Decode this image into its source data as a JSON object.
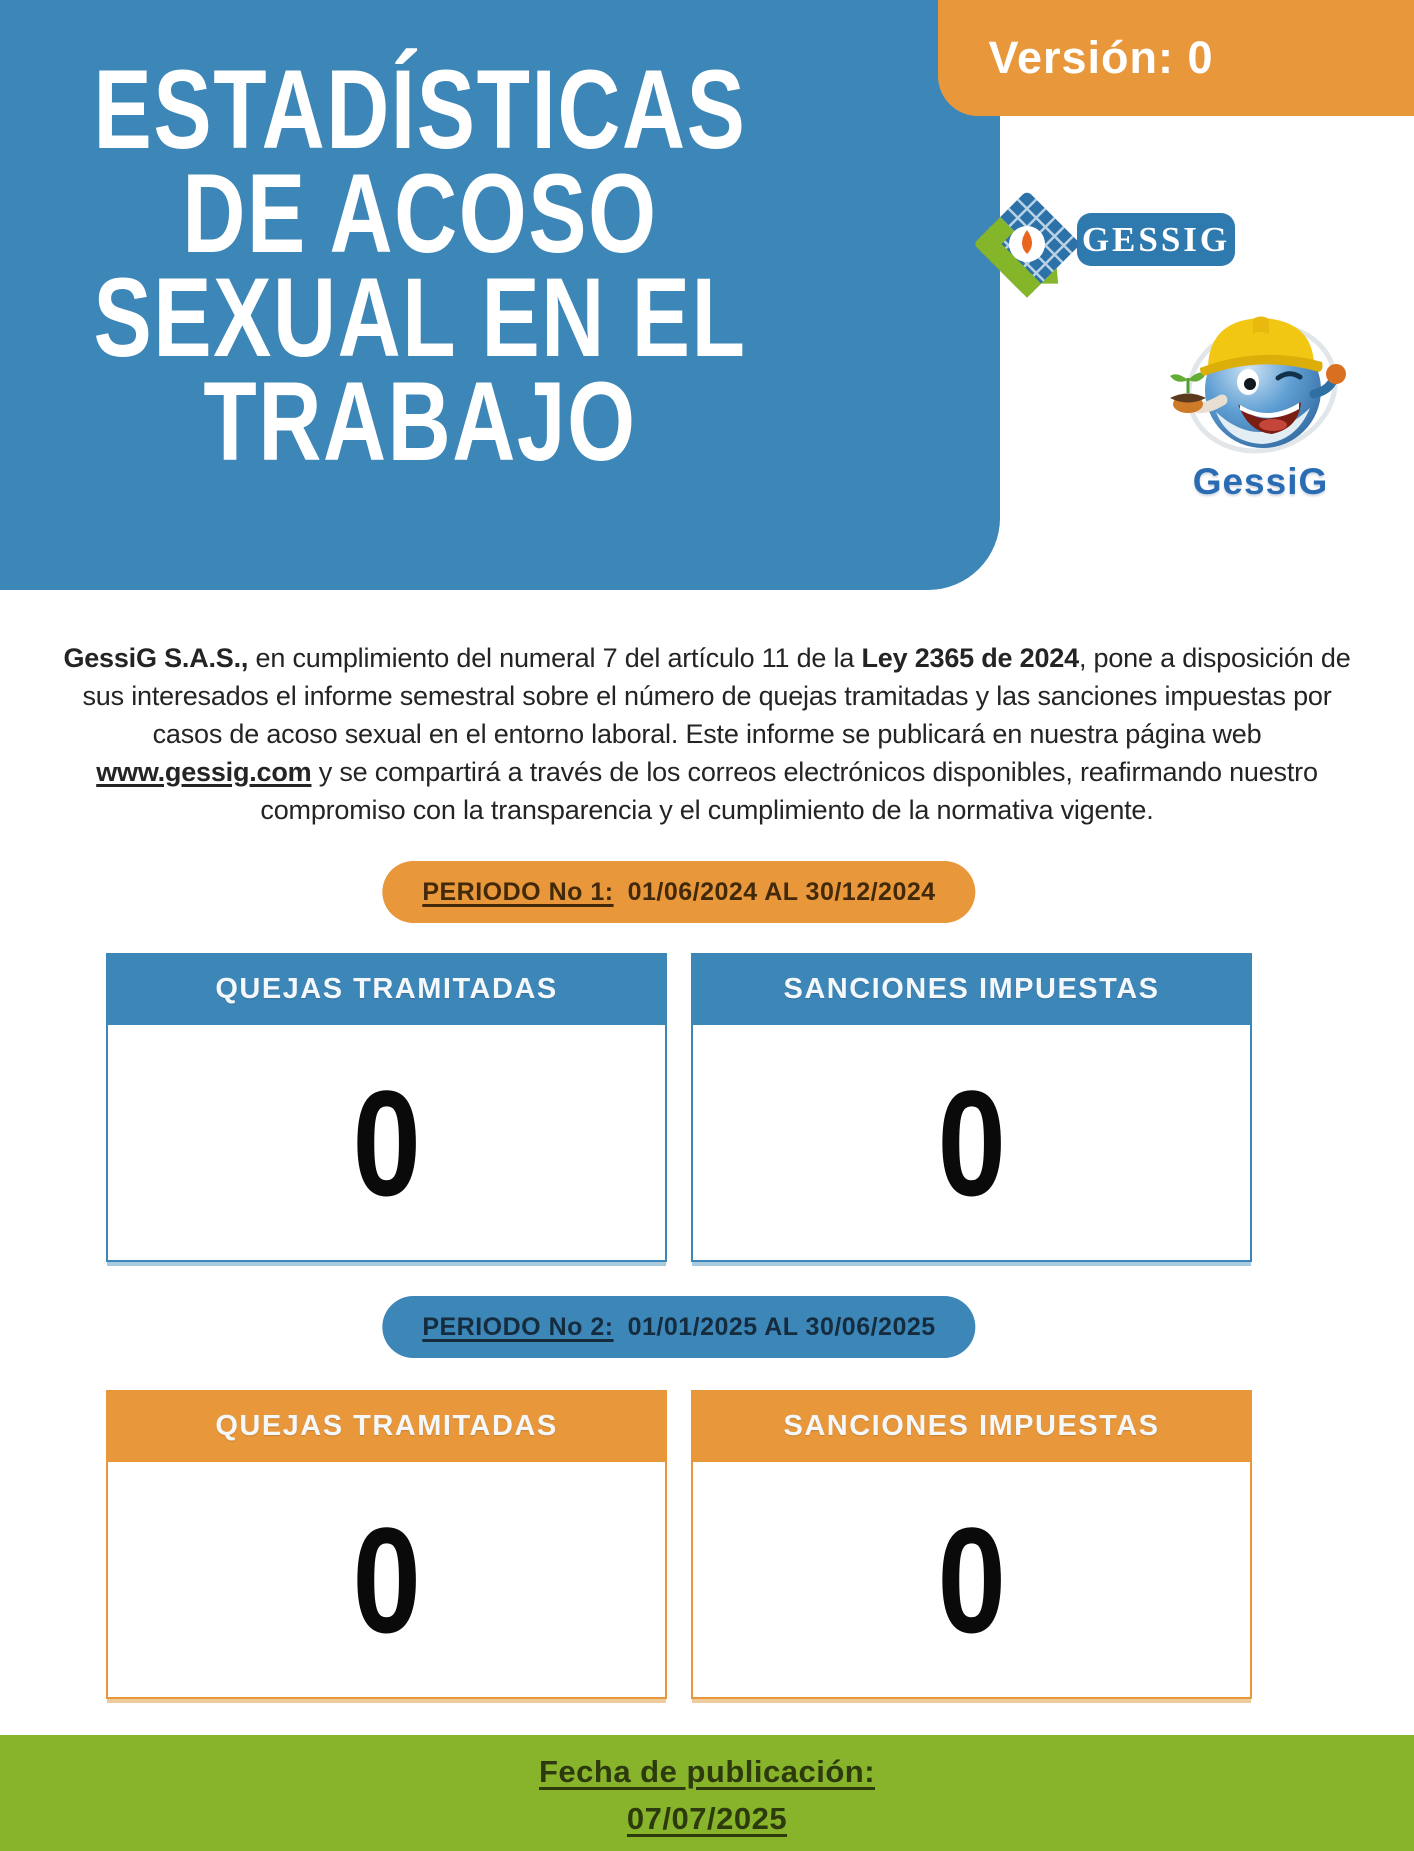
{
  "header": {
    "title_lines": [
      "ESTADÍSTICAS",
      "DE ACOSO",
      "SEXUAL EN EL",
      "TRABAJO"
    ],
    "version_label": "Versión: 0"
  },
  "branding": {
    "logo_text": "GESSIG",
    "mascot_caption": "GessiG"
  },
  "intro": {
    "segments": [
      {
        "text": "GessiG S.A.S.,",
        "bold": true
      },
      {
        "text": " en cumplimiento del numeral 7 del artículo 11 de la "
      },
      {
        "text": "Ley 2365 de 2024",
        "bold": true
      },
      {
        "text": ", pone a disposición de sus interesados el informe semestral sobre el número de quejas tramitadas y las sanciones impuestas por casos de acoso sexual en el entorno laboral. Este informe se publicará en nuestra página web "
      },
      {
        "text": "www.gessig.com",
        "bold": true,
        "underline": true,
        "link": true
      },
      {
        "text": " y se compartirá a través de los correos electrónicos disponibles, reafirmando nuestro compromiso con la transparencia y el cumplimiento de la normativa vigente."
      }
    ]
  },
  "periods": [
    {
      "pill": {
        "label": "PERIODO No 1:",
        "range": "01/06/2024 AL 30/12/2024"
      },
      "cards": [
        {
          "title": "QUEJAS TRAMITADAS",
          "value": "0"
        },
        {
          "title": "SANCIONES IMPUESTAS",
          "value": "0"
        }
      ]
    },
    {
      "pill": {
        "label": "PERIODO No 2:",
        "range": "01/01/2025 AL 30/06/2025"
      },
      "cards": [
        {
          "title": "QUEJAS TRAMITADAS",
          "value": "0"
        },
        {
          "title": "SANCIONES IMPUESTAS",
          "value": "0"
        }
      ]
    }
  ],
  "footer": {
    "label": "Fecha de publicación:",
    "date": "07/07/2025"
  },
  "colors": {
    "blue": "#3D86B8",
    "orange": "#E8973B",
    "green": "#87B42A",
    "logo_green": "#85B529",
    "droplet_orange": "#E8641F",
    "hat_yellow": "#F2C714"
  }
}
